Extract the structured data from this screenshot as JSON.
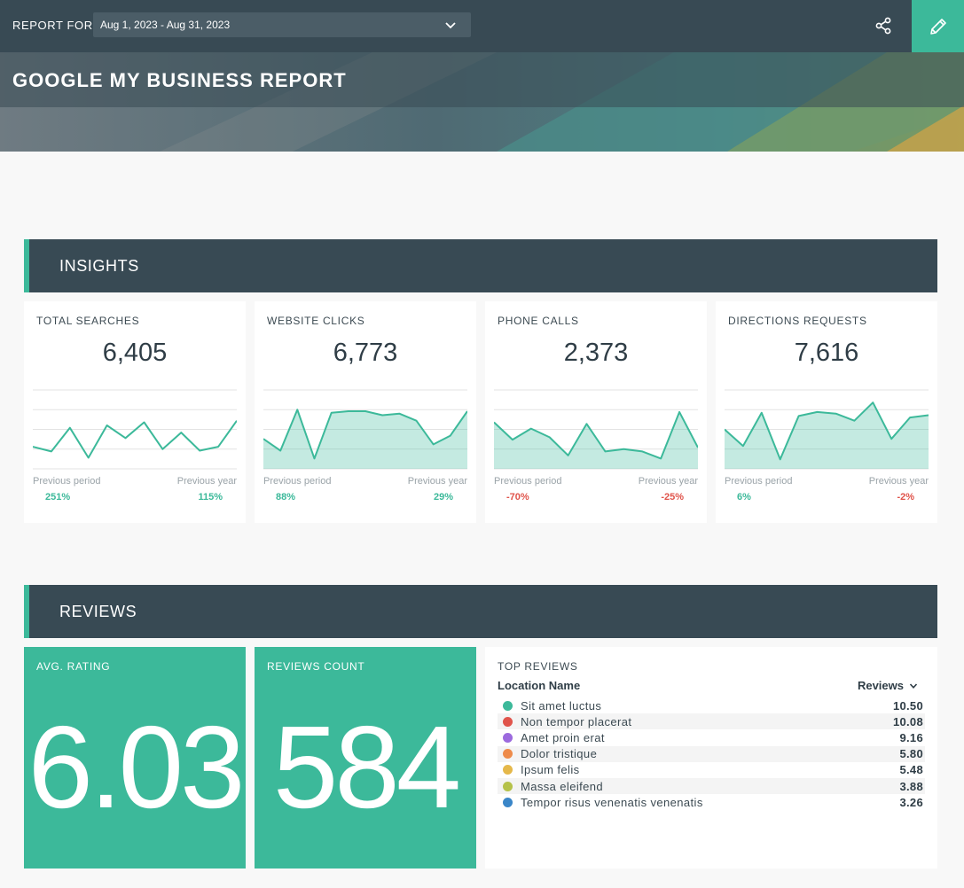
{
  "header": {
    "report_for_label": "REPORT FOR",
    "date_range": "Aug 1, 2023 - Aug 31, 2023",
    "share_icon": "share-icon",
    "edit_icon": "pencil-icon",
    "accent_color": "#3cb99a",
    "bar_color": "#384a54"
  },
  "page": {
    "title": "GOOGLE MY BUSINESS REPORT"
  },
  "insights": {
    "section_title": "INSIGHTS",
    "previous_period_label": "Previous period",
    "previous_year_label": "Previous year",
    "cards": [
      {
        "title": "TOTAL SEARCHES",
        "value": "6,405",
        "chart_type": "line",
        "series": [
          28,
          22,
          52,
          14,
          55,
          39,
          59,
          25,
          46,
          23,
          28,
          61
        ],
        "prev_period": "251%",
        "prev_period_status": "positive",
        "prev_year": "115%",
        "prev_year_status": "positive"
      },
      {
        "title": "WEBSITE CLICKS",
        "value": "6,773",
        "chart_type": "area",
        "series": [
          38,
          23,
          75,
          13,
          71,
          73,
          73,
          68,
          70,
          61,
          31,
          42,
          73
        ],
        "prev_period": "88%",
        "prev_period_status": "positive",
        "prev_year": "29%",
        "prev_year_status": "positive"
      },
      {
        "title": "PHONE CALLS",
        "value": "2,373",
        "chart_type": "area",
        "series": [
          59,
          37,
          51,
          40,
          17,
          57,
          22,
          25,
          22,
          13,
          72,
          27
        ],
        "prev_period": "-70%",
        "prev_period_status": "negative",
        "prev_year": "-25%",
        "prev_year_status": "negative"
      },
      {
        "title": "DIRECTIONS REQUESTS",
        "value": "7,616",
        "chart_type": "area",
        "series": [
          50,
          29,
          71,
          12,
          67,
          72,
          70,
          61,
          84,
          38,
          65,
          68
        ],
        "prev_period": "6%",
        "prev_period_status": "positive",
        "prev_year": "-2%",
        "prev_year_status": "negative"
      }
    ]
  },
  "reviews": {
    "section_title": "REVIEWS",
    "avg_rating": {
      "title": "AVG. RATING",
      "value": "6.03"
    },
    "reviews_count": {
      "title": "REVIEWS COUNT",
      "value": "584"
    },
    "top_reviews": {
      "title": "TOP REVIEWS",
      "col_location": "Location Name",
      "col_reviews": "Reviews",
      "sort_icon": "chevron-down-icon",
      "rows": [
        {
          "location": "Sit amet luctus",
          "value": "10.50",
          "color": "#3cb99a"
        },
        {
          "location": "Non tempor placerat",
          "value": "10.08",
          "color": "#e0544b"
        },
        {
          "location": "Amet proin erat",
          "value": "9.16",
          "color": "#9c6ade"
        },
        {
          "location": "Dolor tristique",
          "value": "5.80",
          "color": "#ee8b4a"
        },
        {
          "location": "Ipsum felis",
          "value": "5.48",
          "color": "#e5b84a"
        },
        {
          "location": "Massa eleifend",
          "value": "3.88",
          "color": "#b5c24a"
        },
        {
          "location": "Tempor risus venenatis venenatis",
          "value": "3.26",
          "color": "#3a86c8"
        }
      ]
    }
  }
}
